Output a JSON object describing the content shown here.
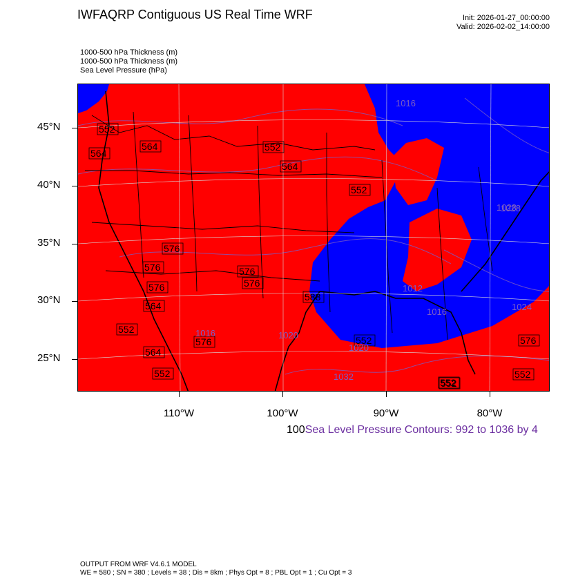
{
  "title": "IWFAQRP Contiguous US Real Time WRF",
  "init": "Init: 2026-01-27_00:00:00",
  "valid": "Valid: 2026-02-02_14:00:00",
  "fields": [
    "1000-500 hPa Thickness   (m)",
    "1000-500 hPa Thickness   (m)",
    "Sea Level Pressure   (hPa)"
  ],
  "lat_labels": [
    "45°N",
    "40°N",
    "35°N",
    "30°N",
    "25°N"
  ],
  "lon_labels": [
    "110°W",
    "100°W",
    "90°W",
    "80°W"
  ],
  "contour_prefix": "100",
  "contour_text": "Sea Level Pressure Contours: 992 to 1036 by 4",
  "footer": [
    "OUTPUT FROM WRF V4.6.1 MODEL",
    "WE = 580 ; SN = 380 ; Levels = 38 ; Dis = 8km ; Phys Opt = 8 ; PBL Opt = 1 ; Cu Opt = 3"
  ],
  "colors": {
    "warm": "#ff0000",
    "cold": "#0000ff",
    "slp": "#7b5cc4"
  },
  "thickness_labels": [
    "552",
    "564",
    "564",
    "552",
    "564",
    "576",
    "576",
    "588",
    "552",
    "576",
    "576",
    "576",
    "564",
    "552",
    "564",
    "552",
    "552",
    "576",
    "576",
    "552",
    "552",
    "552"
  ],
  "slp_labels": [
    "1016",
    "1028",
    "1024",
    "1016",
    "1020",
    "1032",
    "1020",
    "1016",
    "1012",
    "1028"
  ]
}
